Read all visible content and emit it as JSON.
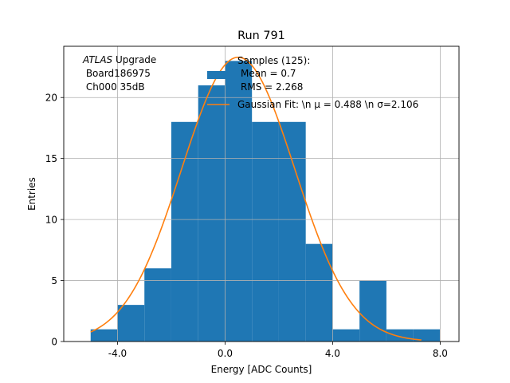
{
  "chart_data": {
    "type": "bar",
    "title": "Run 791",
    "xlabel": "Energy [ADC Counts]",
    "ylabel": "Entries",
    "xlim": [
      -6.0,
      8.7
    ],
    "ylim": [
      0,
      24.2
    ],
    "grid": true,
    "x_ticks": [
      {
        "value": -4,
        "label": "-4.0"
      },
      {
        "value": 0,
        "label": "0.0"
      },
      {
        "value": 4,
        "label": "4.0"
      },
      {
        "value": 8,
        "label": "8.0"
      }
    ],
    "y_ticks": [
      {
        "value": 0,
        "label": "0"
      },
      {
        "value": 5,
        "label": "5"
      },
      {
        "value": 10,
        "label": "10"
      },
      {
        "value": 15,
        "label": "15"
      },
      {
        "value": 20,
        "label": "20"
      }
    ],
    "bin_edges": [
      -5,
      -4,
      -3,
      -2,
      -1,
      0,
      1,
      2,
      3,
      4,
      5,
      6,
      7,
      8
    ],
    "counts": [
      1,
      3,
      6,
      18,
      21,
      23,
      18,
      18,
      8,
      1,
      5,
      1,
      1
    ],
    "fit": {
      "name": "Gaussian Fit",
      "mu": 0.488,
      "sigma": 2.106,
      "amplitude": 23.3,
      "x_range": [
        -5,
        7.3
      ]
    },
    "annotation": {
      "lines": [
        {
          "italic": "ATLAS",
          "text": " Upgrade"
        },
        {
          "italic": "",
          "text": " Board186975"
        },
        {
          "italic": "",
          "text": " Ch000 35dB"
        }
      ]
    },
    "legend": {
      "placement": "top-right",
      "hist_lines": [
        "Samples (125):",
        "Mean = 0.7",
        "RMS = 2.268"
      ],
      "fit_label": "Gaussian Fit: \\n μ = 0.488 \\n σ=2.106"
    },
    "colors": {
      "bars": "#1f77b4",
      "fit": "#ff7f0e",
      "grid": "#b0b0b0"
    }
  }
}
